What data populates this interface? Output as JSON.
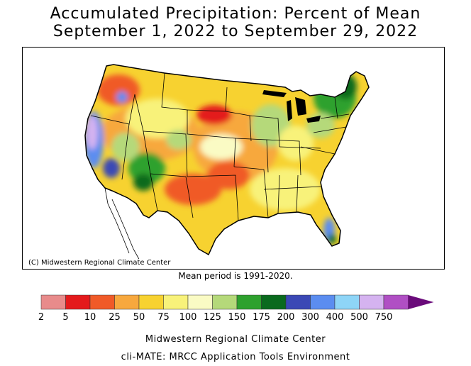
{
  "title": {
    "line1": "Accumulated Precipitation: Percent of Mean",
    "line2": "September 1, 2022 to September 29, 2022"
  },
  "map": {
    "credit": "(C) Midwestern Regional Climate Center",
    "mean_period": "Mean period is 1991-2020."
  },
  "legend": {
    "bins": [
      {
        "label": "2",
        "color": "#e88b8b"
      },
      {
        "label": "5",
        "color": "#e41a1c"
      },
      {
        "label": "10",
        "color": "#f05a28"
      },
      {
        "label": "25",
        "color": "#f7a83e"
      },
      {
        "label": "50",
        "color": "#f7d230"
      },
      {
        "label": "75",
        "color": "#f8f27a"
      },
      {
        "label": "100",
        "color": "#fafbc4"
      },
      {
        "label": "125",
        "color": "#b5d97a"
      },
      {
        "label": "150",
        "color": "#2ea12e"
      },
      {
        "label": "175",
        "color": "#0a6a1e"
      },
      {
        "label": "200",
        "color": "#3b48b5"
      },
      {
        "label": "300",
        "color": "#5b8df0"
      },
      {
        "label": "400",
        "color": "#8ed5f7"
      },
      {
        "label": "500",
        "color": "#d5b3f0"
      },
      {
        "label": "750",
        "color": "#b04fc4"
      }
    ],
    "overflow_color": "#6a0a7a"
  },
  "footer": {
    "line1": "Midwestern Regional Climate Center",
    "line2": "cli-MATE: MRCC Application Tools Environment"
  }
}
